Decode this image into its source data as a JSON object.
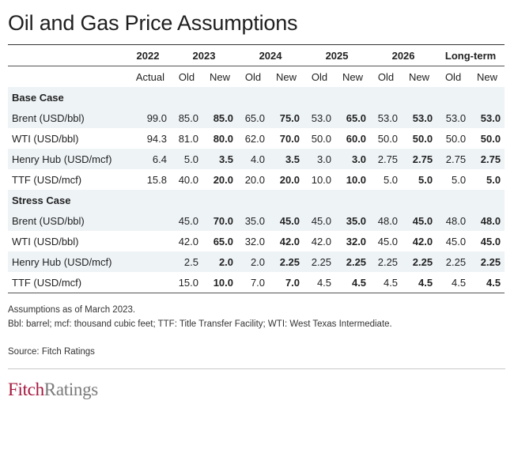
{
  "title": "Oil and Gas Price Assumptions",
  "header": {
    "years": [
      "2022",
      "2023",
      "2024",
      "2025",
      "2026",
      "Long-term"
    ],
    "sub": [
      "Actual",
      "Old",
      "New",
      "Old",
      "New",
      "Old",
      "New",
      "Old",
      "New",
      "Old",
      "New"
    ]
  },
  "sections": [
    {
      "name": "Base Case",
      "rows": [
        {
          "label": "Brent (USD/bbl)",
          "values": [
            "99.0",
            "85.0",
            "85.0",
            "65.0",
            "75.0",
            "53.0",
            "65.0",
            "53.0",
            "53.0",
            "53.0",
            "53.0"
          ]
        },
        {
          "label": "WTI (USD/bbl)",
          "values": [
            "94.3",
            "81.0",
            "80.0",
            "62.0",
            "70.0",
            "50.0",
            "60.0",
            "50.0",
            "50.0",
            "50.0",
            "50.0"
          ]
        },
        {
          "label": "Henry Hub (USD/mcf)",
          "values": [
            "6.4",
            "5.0",
            "3.5",
            "4.0",
            "3.5",
            "3.0",
            "3.0",
            "2.75",
            "2.75",
            "2.75",
            "2.75"
          ]
        },
        {
          "label": "TTF (USD/mcf)",
          "values": [
            "15.8",
            "40.0",
            "20.0",
            "20.0",
            "20.0",
            "10.0",
            "10.0",
            "5.0",
            "5.0",
            "5.0",
            "5.0"
          ]
        }
      ]
    },
    {
      "name": "Stress Case",
      "rows": [
        {
          "label": "Brent (USD/bbl)",
          "values": [
            "",
            "45.0",
            "70.0",
            "35.0",
            "45.0",
            "45.0",
            "35.0",
            "48.0",
            "45.0",
            "48.0",
            "48.0"
          ]
        },
        {
          "label": "WTI (USD/bbl)",
          "values": [
            "",
            "42.0",
            "65.0",
            "32.0",
            "42.0",
            "42.0",
            "32.0",
            "45.0",
            "42.0",
            "45.0",
            "45.0"
          ]
        },
        {
          "label": "Henry Hub (USD/mcf)",
          "values": [
            "",
            "2.5",
            "2.0",
            "2.0",
            "2.25",
            "2.25",
            "2.25",
            "2.25",
            "2.25",
            "2.25",
            "2.25"
          ]
        },
        {
          "label": "TTF (USD/mcf)",
          "values": [
            "",
            "15.0",
            "10.0",
            "7.0",
            "7.0",
            "4.5",
            "4.5",
            "4.5",
            "4.5",
            "4.5",
            "4.5"
          ]
        }
      ]
    }
  ],
  "notes": [
    "Assumptions as of March 2023.",
    "Bbl: barrel; mcf: thousand cubic feet; TTF: Title Transfer Facility; WTI: West Texas Intermediate."
  ],
  "source": "Source: Fitch Ratings",
  "logo": {
    "part1": "Fitch",
    "part2": "Ratings"
  },
  "colors": {
    "logo_red": "#a5183f",
    "logo_gray": "#7a7a7a",
    "row_shade": "#eef3f6"
  }
}
